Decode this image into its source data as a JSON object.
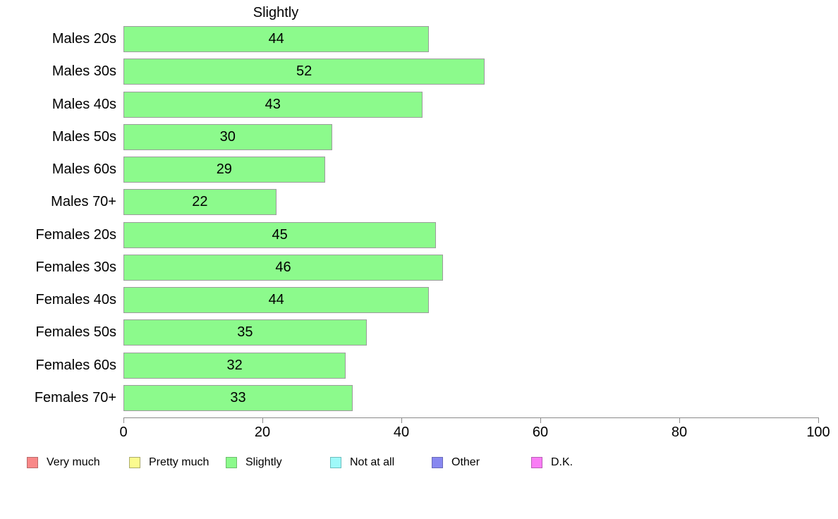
{
  "chart_data": {
    "type": "bar",
    "orientation": "horizontal",
    "title": "Slightly",
    "categories": [
      "Males 20s",
      "Males 30s",
      "Males 40s",
      "Males 50s",
      "Males 60s",
      "Males 70+",
      "Females 20s",
      "Females 30s",
      "Females 40s",
      "Females 50s",
      "Females 60s",
      "Females 70+"
    ],
    "values": [
      44,
      52,
      43,
      30,
      29,
      22,
      45,
      46,
      44,
      35,
      32,
      33
    ],
    "value_labels_shown": true,
    "xlabel": "",
    "ylabel": "",
    "xlim": [
      0,
      100
    ],
    "x_ticks": [
      0,
      20,
      40,
      60,
      80,
      100
    ],
    "grid": false,
    "bar_color": "#8cfa8c",
    "bar_border_color": "#9c9c9c",
    "axis_color": "#8a8a8a",
    "legend_position": "bottom-left",
    "legend": [
      {
        "label": "Very much",
        "color": "#f88888",
        "border": "#b96a6a"
      },
      {
        "label": "Pretty much",
        "color": "#fbfb8f",
        "border": "#acac6a"
      },
      {
        "label": "Slightly",
        "color": "#8cfa8c",
        "border": "#6cbe6c"
      },
      {
        "label": "Not at all",
        "color": "#9ff9f9",
        "border": "#6cbebe"
      },
      {
        "label": "Other",
        "color": "#8888f0",
        "border": "#6a6ab9"
      },
      {
        "label": "D.K.",
        "color": "#f97df5",
        "border": "#ba5eb6"
      }
    ]
  }
}
